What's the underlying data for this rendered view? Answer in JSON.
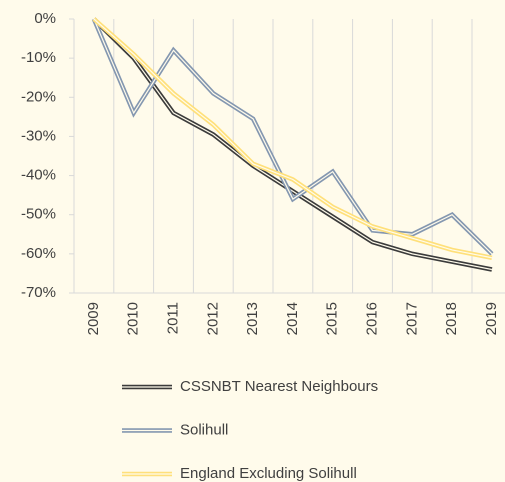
{
  "chart_data": {
    "type": "line",
    "categories": [
      "2009",
      "2010",
      "2011",
      "2012",
      "2013",
      "2014",
      "2015",
      "2016",
      "2017",
      "2018",
      "2019"
    ],
    "series": [
      {
        "name": "CSSNBT Nearest Neighbours",
        "color": "#3b3b3b",
        "values": [
          0,
          -10,
          -24,
          -29.5,
          -37.5,
          -44,
          -50.5,
          -57,
          -60,
          -62,
          -64
        ]
      },
      {
        "name": "Solihull",
        "color": "#8497b0",
        "values": [
          0,
          -24,
          -8,
          -19,
          -25.5,
          -46,
          -39,
          -54,
          -55,
          -50,
          -60
        ]
      },
      {
        "name": "England Excluding Solihull",
        "color": "#ffe07a",
        "values": [
          0,
          -9,
          -19,
          -27,
          -37,
          -41,
          -48,
          -53,
          -56,
          -59,
          -61
        ]
      }
    ],
    "ylim": [
      -70,
      0
    ],
    "yticks": [
      {
        "value": 0,
        "label": "0%"
      },
      {
        "value": -10,
        "label": "-10%"
      },
      {
        "value": -20,
        "label": "-20%"
      },
      {
        "value": -30,
        "label": "-30%"
      },
      {
        "value": -40,
        "label": "-40%"
      },
      {
        "value": -50,
        "label": "-50%"
      },
      {
        "value": -60,
        "label": "-60%"
      },
      {
        "value": -70,
        "label": "-70%"
      }
    ],
    "legend": "bottom"
  }
}
